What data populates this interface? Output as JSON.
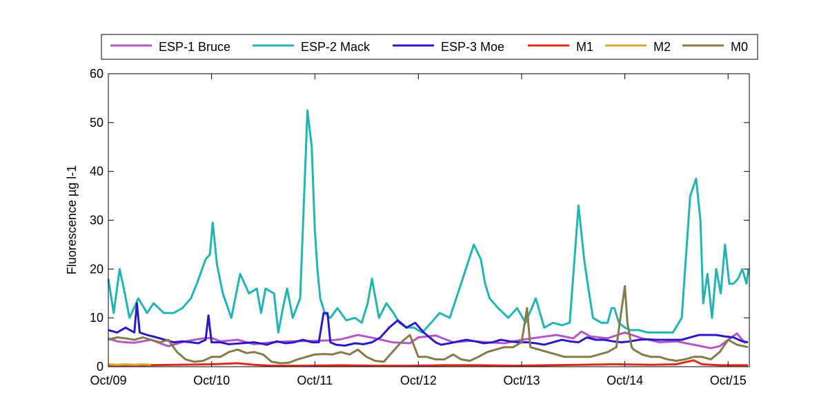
{
  "chart_data": {
    "type": "line",
    "title": "",
    "xlabel": "",
    "ylabel": "Fluorescence µg l-1",
    "x_ticks": [
      "Oct/09",
      "Oct/10",
      "Oct/11",
      "Oct/12",
      "Oct/13",
      "Oct/14",
      "Oct/15"
    ],
    "xlim": [
      "2009-10-01",
      "2015-12-15"
    ],
    "ylim": [
      0,
      60
    ],
    "y_ticks": [
      0,
      10,
      20,
      30,
      40,
      50,
      60
    ],
    "grid": false,
    "legend_position": "top, above plot, horizontal",
    "series": [
      {
        "name": "ESP-1 Bruce",
        "color": "#b455c8",
        "x": [
          "2009-10-01",
          "2009-11-01",
          "2009-12-01",
          "2010-01-01",
          "2010-03-01",
          "2010-05-01",
          "2010-07-01",
          "2010-09-01",
          "2010-10-01",
          "2010-11-01",
          "2011-01-01",
          "2011-03-01",
          "2011-05-01",
          "2011-07-01",
          "2011-10-01",
          "2011-12-01",
          "2012-01-01",
          "2012-03-01",
          "2012-05-01",
          "2012-07-01",
          "2012-09-01",
          "2012-10-01",
          "2012-12-01",
          "2013-02-01",
          "2013-04-01",
          "2013-06-01",
          "2013-08-01",
          "2013-10-01",
          "2013-12-01",
          "2014-02-01",
          "2014-04-01",
          "2014-05-01",
          "2014-06-01",
          "2014-08-01",
          "2014-10-01",
          "2014-12-01",
          "2015-02-01",
          "2015-04-01",
          "2015-06-01",
          "2015-08-01",
          "2015-09-01",
          "2015-10-01",
          "2015-11-01",
          "2015-12-01"
        ],
        "y": [
          5.8,
          5.2,
          5.0,
          4.9,
          5.5,
          4.2,
          5.2,
          5.8,
          5.9,
          5.2,
          5.5,
          4.6,
          5.0,
          5.2,
          5.3,
          5.4,
          5.6,
          6.5,
          5.8,
          5.0,
          4.8,
          6.0,
          6.4,
          5.0,
          5.3,
          5.0,
          4.8,
          5.5,
          6.0,
          6.5,
          5.8,
          7.2,
          6.2,
          5.8,
          7.0,
          5.8,
          5.0,
          5.2,
          4.5,
          3.8,
          4.2,
          5.5,
          6.8,
          4.8
        ]
      },
      {
        "name": "ESP-2 Mack",
        "color": "#20b5b5",
        "x": [
          "2009-10-01",
          "2009-10-20",
          "2009-11-10",
          "2009-11-25",
          "2009-12-15",
          "2010-01-15",
          "2010-02-15",
          "2010-03-10",
          "2010-04-15",
          "2010-05-20",
          "2010-06-20",
          "2010-07-20",
          "2010-08-10",
          "2010-09-10",
          "2010-09-25",
          "2010-10-05",
          "2010-10-20",
          "2010-11-10",
          "2010-12-10",
          "2011-01-10",
          "2011-02-10",
          "2011-03-10",
          "2011-03-25",
          "2011-04-10",
          "2011-05-10",
          "2011-05-25",
          "2011-06-10",
          "2011-06-25",
          "2011-07-15",
          "2011-08-10",
          "2011-09-05",
          "2011-09-20",
          "2011-10-01",
          "2011-10-10",
          "2011-10-20",
          "2011-11-05",
          "2011-11-25",
          "2011-12-20",
          "2012-01-20",
          "2012-02-20",
          "2012-03-15",
          "2012-04-05",
          "2012-04-20",
          "2012-05-15",
          "2012-06-10",
          "2012-07-05",
          "2012-07-25",
          "2012-08-20",
          "2012-09-15",
          "2012-10-15",
          "2012-11-15",
          "2012-12-15",
          "2013-01-20",
          "2013-03-01",
          "2013-04-15",
          "2013-05-10",
          "2013-05-25",
          "2013-06-10",
          "2013-07-10",
          "2013-08-15",
          "2013-09-15",
          "2013-10-15",
          "2013-11-20",
          "2013-12-20",
          "2014-01-20",
          "2014-02-20",
          "2014-03-20",
          "2014-04-20",
          "2014-05-10",
          "2014-05-20",
          "2014-06-10",
          "2014-07-10",
          "2014-08-01",
          "2014-08-15",
          "2014-08-25",
          "2014-09-10",
          "2014-10-01",
          "2014-10-20",
          "2014-11-20",
          "2014-12-20",
          "2015-01-20",
          "2015-02-20",
          "2015-03-20",
          "2015-04-20",
          "2015-05-20",
          "2015-06-10",
          "2015-06-25",
          "2015-07-05",
          "2015-07-20",
          "2015-08-05",
          "2015-08-20",
          "2015-09-05",
          "2015-09-20",
          "2015-10-05",
          "2015-10-20",
          "2015-11-05",
          "2015-11-20",
          "2015-12-05",
          "2015-12-12"
        ],
        "y": [
          18,
          11,
          20,
          16,
          10,
          14,
          11,
          13,
          11,
          11,
          12,
          14,
          17,
          22,
          23,
          29.5,
          21,
          15,
          10,
          19,
          15,
          16,
          11,
          16,
          15,
          7,
          12,
          16,
          10,
          14,
          52.5,
          45,
          28,
          20,
          14,
          11,
          10,
          12,
          9.5,
          10,
          9,
          13,
          18,
          10,
          13,
          11,
          9,
          8,
          8,
          7,
          9,
          11,
          10,
          17,
          25,
          22,
          17,
          14,
          12,
          10,
          12,
          9,
          14,
          8,
          9,
          8.5,
          9,
          33,
          22,
          18,
          10,
          9,
          9,
          12,
          12,
          9,
          8,
          7.5,
          7.5,
          7,
          7,
          7,
          7,
          10,
          35,
          38.5,
          30,
          13,
          19,
          10,
          20,
          15,
          25,
          17,
          17,
          18,
          20,
          17,
          20
        ]
      },
      {
        "name": "ESP-3 Moe",
        "color": "#2c18c8",
        "x": [
          "2009-10-01",
          "2009-11-01",
          "2009-12-01",
          "2010-01-01",
          "2010-01-10",
          "2010-01-20",
          "2010-02-15",
          "2010-03-20",
          "2010-04-20",
          "2010-05-20",
          "2010-06-20",
          "2010-07-20",
          "2010-08-15",
          "2010-09-10",
          "2010-09-20",
          "2010-10-01",
          "2010-11-01",
          "2010-12-01",
          "2011-01-15",
          "2011-03-01",
          "2011-04-15",
          "2011-05-20",
          "2011-06-20",
          "2011-07-20",
          "2011-08-20",
          "2011-09-20",
          "2011-10-15",
          "2011-11-01",
          "2011-11-15",
          "2011-11-25",
          "2011-12-15",
          "2012-01-15",
          "2012-02-20",
          "2012-03-20",
          "2012-04-20",
          "2012-05-20",
          "2012-06-20",
          "2012-07-20",
          "2012-08-20",
          "2012-09-20",
          "2012-10-20",
          "2012-11-20",
          "2012-12-01",
          "2012-12-20",
          "2013-01-20",
          "2013-02-20",
          "2013-03-20",
          "2013-04-20",
          "2013-05-20",
          "2013-06-20",
          "2013-07-20",
          "2013-08-20",
          "2013-09-20",
          "2013-10-20",
          "2013-11-20",
          "2013-12-20",
          "2014-01-20",
          "2014-02-20",
          "2014-03-20",
          "2014-04-20",
          "2014-05-20",
          "2014-06-20",
          "2014-07-20",
          "2014-08-20",
          "2014-09-20",
          "2014-10-20",
          "2014-11-20",
          "2014-12-20",
          "2015-01-20",
          "2015-02-20",
          "2015-03-20",
          "2015-04-20",
          "2015-05-20",
          "2015-06-20",
          "2015-07-20",
          "2015-08-20",
          "2015-09-20",
          "2015-10-20",
          "2015-11-20",
          "2015-12-10"
        ],
        "y": [
          7.5,
          7,
          8,
          7,
          13,
          7,
          6.5,
          6,
          5.5,
          5,
          5.2,
          5,
          4.8,
          5.5,
          10.5,
          5,
          5,
          4.6,
          4.8,
          5,
          4.5,
          5.2,
          4.8,
          5,
          5.5,
          5,
          5,
          11,
          11,
          5,
          4.5,
          4.3,
          4.8,
          4.6,
          5,
          6,
          8,
          9.5,
          8,
          9,
          7,
          5.5,
          5,
          4.5,
          4.8,
          5.2,
          5.5,
          5.2,
          4.8,
          5,
          5.5,
          5.2,
          5,
          5,
          4.8,
          4.5,
          5,
          5.5,
          5.2,
          5,
          6,
          5.5,
          5.5,
          5.2,
          5,
          5.2,
          5.5,
          5.6,
          5.5,
          5.5,
          5.5,
          5.5,
          6,
          6.5,
          6.5,
          6.5,
          6.2,
          6,
          5.2,
          5
        ]
      },
      {
        "name": "M1",
        "color": "#e02a18",
        "x": [
          "2009-10-01",
          "2010-02-01",
          "2010-06-01",
          "2010-10-01",
          "2011-01-01",
          "2011-03-01",
          "2011-05-01",
          "2011-09-01",
          "2012-01-01",
          "2012-05-01",
          "2012-09-01",
          "2013-01-01",
          "2013-05-01",
          "2013-09-01",
          "2014-01-01",
          "2014-05-01",
          "2014-09-01",
          "2015-01-01",
          "2015-04-01",
          "2015-05-01",
          "2015-06-01",
          "2015-07-01",
          "2015-09-01",
          "2015-12-10"
        ],
        "y": [
          0.3,
          0.3,
          0.4,
          0.5,
          0.7,
          0.4,
          0.2,
          0.2,
          0.3,
          0.2,
          0.2,
          0.3,
          0.3,
          0.2,
          0.3,
          0.4,
          0.5,
          0.4,
          0.5,
          0.9,
          1.3,
          0.5,
          0.3,
          0.3
        ]
      },
      {
        "name": "M2",
        "color": "#d4aa30",
        "x": [
          "2009-10-01",
          "2009-11-01",
          "2009-12-01",
          "2010-01-01",
          "2010-02-01",
          "2010-03-01"
        ],
        "y": [
          0.5,
          0.4,
          0.5,
          0.4,
          0.5,
          0.4
        ]
      },
      {
        "name": "M0",
        "color": "#857a48",
        "x": [
          "2009-10-01",
          "2009-11-01",
          "2009-12-01",
          "2010-01-01",
          "2010-02-01",
          "2010-03-01",
          "2010-04-01",
          "2010-05-01",
          "2010-06-01",
          "2010-07-01",
          "2010-08-01",
          "2010-09-01",
          "2010-10-01",
          "2010-11-01",
          "2010-12-01",
          "2011-01-01",
          "2011-02-01",
          "2011-03-01",
          "2011-04-01",
          "2011-05-01",
          "2011-06-01",
          "2011-07-01",
          "2011-08-01",
          "2011-09-01",
          "2011-10-01",
          "2011-11-01",
          "2011-12-01",
          "2012-01-01",
          "2012-02-01",
          "2012-03-01",
          "2012-04-01",
          "2012-05-01",
          "2012-06-01",
          "2012-07-01",
          "2012-08-01",
          "2012-09-01",
          "2012-10-01",
          "2012-11-01",
          "2012-12-01",
          "2013-01-01",
          "2013-02-01",
          "2013-03-01",
          "2013-04-01",
          "2013-05-01",
          "2013-06-01",
          "2013-07-01",
          "2013-08-01",
          "2013-09-01",
          "2013-10-01",
          "2013-10-20",
          "2013-11-01",
          "2013-12-01",
          "2014-01-01",
          "2014-02-01",
          "2014-03-01",
          "2014-04-01",
          "2014-05-01",
          "2014-06-01",
          "2014-07-01",
          "2014-08-01",
          "2014-09-01",
          "2014-09-20",
          "2014-10-01",
          "2014-10-10",
          "2014-10-25",
          "2014-11-01",
          "2014-12-01",
          "2015-01-01",
          "2015-02-01",
          "2015-03-01",
          "2015-04-01",
          "2015-05-01",
          "2015-06-01",
          "2015-07-01",
          "2015-08-01",
          "2015-09-01",
          "2015-10-01",
          "2015-11-01",
          "2015-12-10"
        ],
        "y": [
          5.5,
          6,
          5.8,
          5.5,
          6,
          5.5,
          5,
          5.5,
          3,
          1.5,
          1,
          1.2,
          2,
          2,
          3,
          3.5,
          2.8,
          3,
          2.5,
          1,
          0.7,
          0.8,
          1.5,
          2,
          2.5,
          2.6,
          2.5,
          3,
          2.5,
          3.5,
          2,
          1.2,
          1,
          3,
          5,
          6.5,
          2,
          2,
          1.5,
          1.5,
          2.5,
          1.5,
          1.2,
          2,
          3,
          3.5,
          4,
          4,
          5,
          12,
          4,
          3.5,
          3,
          2.5,
          2,
          2,
          2,
          2,
          2.5,
          3,
          4,
          12,
          16.5,
          9,
          4,
          3.5,
          2.5,
          2,
          2,
          1.5,
          1.2,
          1.5,
          2,
          2,
          1.5,
          3,
          5.5,
          4.5,
          4
        ]
      }
    ]
  }
}
